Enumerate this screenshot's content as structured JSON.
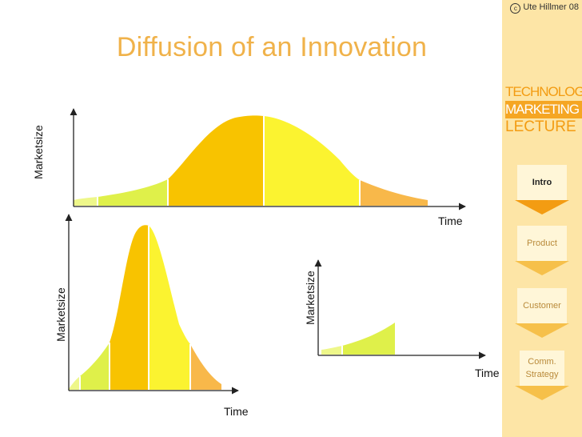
{
  "title": "Diffusion of an Innovation",
  "copyright": "Ute Hillmer 08",
  "brand": {
    "line1": "TECHNOLOGY",
    "line2": "MARKETING",
    "line3": "LECTURE"
  },
  "nav": [
    {
      "label": "Intro",
      "active": true
    },
    {
      "label": "Product",
      "active": false
    },
    {
      "label": "Customer",
      "active": false
    },
    {
      "label": "Comm. Strategy",
      "active": false
    }
  ],
  "charts": [
    {
      "ylabel": "Marketsize",
      "xlabel": "Time"
    },
    {
      "ylabel": "Marketsize",
      "xlabel": "Time"
    },
    {
      "ylabel": "Marketsize",
      "xlabel": "Time"
    }
  ],
  "colors": {
    "title": "#f0b24a",
    "segment_light": "#eef78a",
    "segment_lime": "#dff04a",
    "segment_orange": "#f8c300",
    "segment_yellow": "#fbf330",
    "segment_tail": "#f8b84a",
    "sidebar": "#fde5a6",
    "nav_active_arrow": "#f39c12"
  }
}
